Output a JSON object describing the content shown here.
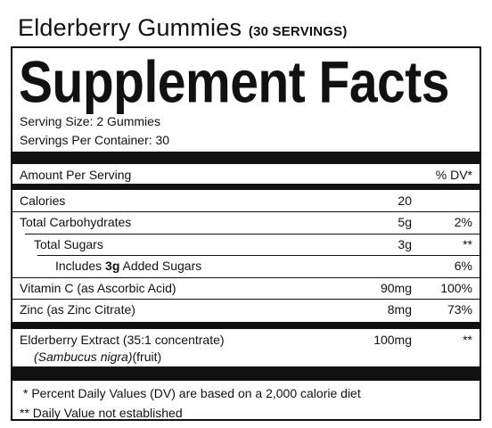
{
  "header": {
    "title": "Elderberry Gummies",
    "servings": "(30 SERVINGS)"
  },
  "label": {
    "title": "Supplement Facts",
    "serving_size": "Serving Size: 2 Gummies",
    "servings_per_container": "Servings Per Container: 30",
    "column_header": {
      "amount": "Amount Per Serving",
      "dv": "% DV*"
    },
    "rows": [
      {
        "name": [
          "Calories"
        ],
        "amount": "20",
        "indent": 0
      },
      {
        "name": [
          "Total Carbohydrates"
        ],
        "amount": "5g",
        "dv": "2%",
        "indent": 0
      },
      {
        "name": [
          "Total Sugars"
        ],
        "amount": "3g",
        "dv": "**",
        "indent": 1
      },
      {
        "name": [
          "Includes ",
          "3g",
          " Added Sugars"
        ],
        "dv": "6%",
        "indent": 2
      },
      {
        "name": [
          "Vitamin C (as Ascorbic Acid)"
        ],
        "amount": "90mg",
        "dv": "100%",
        "indent": 0
      },
      {
        "name": [
          "Zinc (as Zinc Citrate)"
        ],
        "amount": "8mg",
        "dv": "73%",
        "indent": 0
      }
    ],
    "extract": {
      "name": "Elderberry Extract (35:1 concentrate)",
      "amount": "100mg",
      "dv": "**",
      "source_latin": "(Sambucus nigra)",
      "source_part": "(fruit)"
    },
    "footnotes": [
      "* Percent Daily Values (DV) are based on a 2,000 calorie diet",
      "** Daily Value not established"
    ]
  }
}
